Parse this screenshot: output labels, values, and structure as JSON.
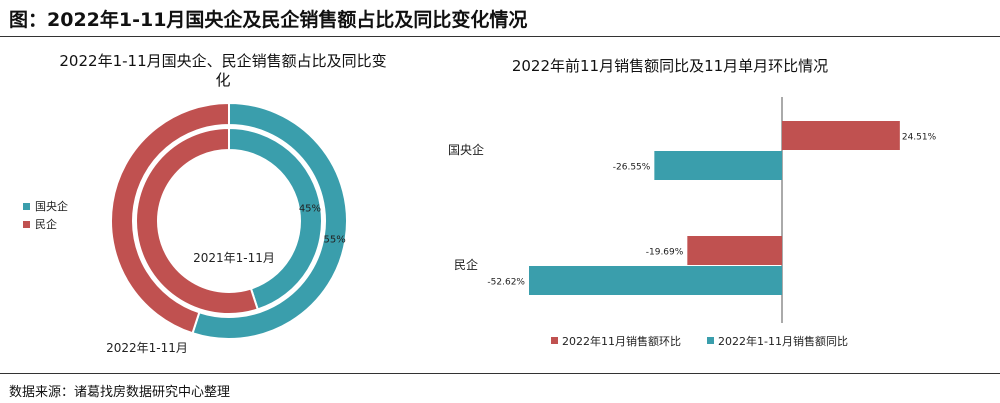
{
  "figure_title": "图：2022年1-11月国央企及民企销售额占比及同比变化情况",
  "source": "数据来源：诸葛找房数据研究中心整理",
  "colors": {
    "guoyang": "#3a9eac",
    "minqi": "#c05150"
  },
  "chart_data": [
    {
      "type": "pie",
      "variant": "double-donut",
      "title": "2022年1-11月国央企、民企销售额占比及同比变化",
      "legend": [
        "国央企",
        "民企"
      ],
      "legend_position": "left",
      "rings": [
        {
          "name": "2021年1-11月",
          "ring": "inner",
          "values": [
            45,
            55
          ],
          "labels": [
            "45%",
            ""
          ]
        },
        {
          "name": "2022年1-11月",
          "ring": "outer",
          "values": [
            55,
            45
          ],
          "labels": [
            "55%",
            ""
          ]
        }
      ]
    },
    {
      "type": "bar",
      "orientation": "horizontal",
      "title": "2022年前11月销售额同比及11月单月环比情况",
      "categories": [
        "国央企",
        "民企"
      ],
      "legend_position": "bottom",
      "series": [
        {
          "name": "2022年11月销售额环比",
          "values": [
            24.51,
            -19.69
          ],
          "labels": [
            "24.51%",
            "-19.69%"
          ],
          "color": "#c05150"
        },
        {
          "name": "2022年1-11月销售额同比",
          "values": [
            -26.55,
            -52.62
          ],
          "labels": [
            "-26.55%",
            "-52.62%"
          ],
          "color": "#3a9eac"
        }
      ],
      "xlim": [
        -60,
        30
      ]
    }
  ]
}
